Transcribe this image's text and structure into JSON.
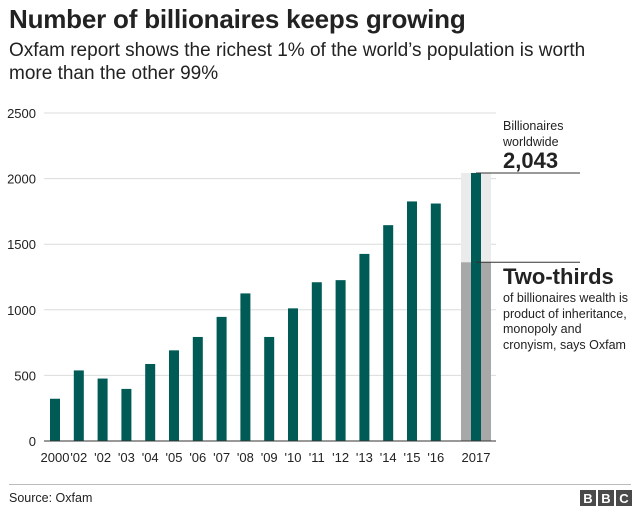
{
  "header": {
    "title": "Number of billionaires keeps growing",
    "subtitle": "Oxfam report shows the richest 1% of the world’s population is worth more than the other 99%"
  },
  "chart_data": {
    "type": "bar",
    "categories": [
      "2000",
      "'02",
      "'02",
      "'03",
      "'04",
      "'05",
      "'06",
      "'07",
      "'08",
      "'09",
      "'10",
      "'11",
      "'12",
      "'13",
      "'14",
      "'15",
      "'16",
      "2017"
    ],
    "values": [
      322,
      538,
      476,
      397,
      587,
      691,
      793,
      946,
      1125,
      793,
      1011,
      1210,
      1226,
      1426,
      1645,
      1826,
      1810,
      2043
    ],
    "highlight": {
      "category": "2017",
      "total": 2043,
      "inherited_portion": 1362,
      "inherited_label": "Two-thirds"
    },
    "ylim": [
      0,
      2500
    ],
    "yticks": [
      0,
      500,
      1000,
      1500,
      2000,
      2500
    ],
    "title": "Number of billionaires keeps growing",
    "xlabel": "",
    "ylabel": ""
  },
  "annotations": {
    "total_label": "Billionaires worldwide",
    "total_value": "2,043",
    "two_thirds_heading": "Two-thirds",
    "two_thirds_desc": "of billionaires wealth is product of inheritance, monopoly and cronyism, says Oxfam"
  },
  "footer": {
    "source": "Source: Oxfam",
    "logo_letters": [
      "B",
      "B",
      "C"
    ]
  },
  "colors": {
    "bar": "#005a55",
    "highlight_bg": "#ebebeb",
    "highlight_portion": "#a8a8a8",
    "gridline": "#dcdcdc",
    "axis": "#333333",
    "text": "#222222",
    "logo": "#4a4a4a"
  }
}
